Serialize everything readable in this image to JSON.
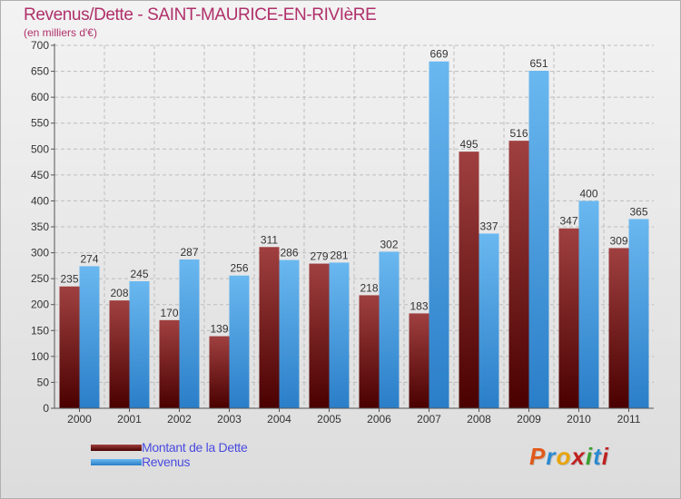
{
  "header": {
    "title": "Revenus/Dette - SAINT-MAURICE-EN-RIVIèRE",
    "subtitle": "(en milliers d'€)"
  },
  "legend": {
    "items": [
      {
        "label": "Montant de la Dette"
      },
      {
        "label": "Revenus"
      }
    ]
  },
  "logo": {
    "text": "Proxiti"
  },
  "colors": {
    "dette_top": "#a04040",
    "dette_bottom": "#4a0000",
    "revenus_top": "#6ab8f0",
    "revenus_bottom": "#2a7ec8",
    "title": "#b0306a",
    "legend_text": "#4a4ae0"
  },
  "chart_data": {
    "type": "bar",
    "title": "Revenus/Dette - SAINT-MAURICE-EN-RIVIèRE",
    "subtitle": "(en milliers d'€)",
    "xlabel": "",
    "ylabel": "",
    "ylim": [
      0,
      700
    ],
    "yticks": [
      0,
      50,
      100,
      150,
      200,
      250,
      300,
      350,
      400,
      450,
      500,
      550,
      600,
      650,
      700
    ],
    "grid": true,
    "legend_position": "bottom-left",
    "categories": [
      "2000",
      "2001",
      "2002",
      "2003",
      "2004",
      "2005",
      "2006",
      "2007",
      "2008",
      "2009",
      "2010",
      "2011"
    ],
    "series": [
      {
        "name": "Montant de la Dette",
        "values": [
          235,
          208,
          170,
          139,
          311,
          279,
          218,
          183,
          495,
          516,
          347,
          309
        ]
      },
      {
        "name": "Revenus",
        "values": [
          274,
          245,
          287,
          256,
          286,
          281,
          302,
          669,
          337,
          651,
          400,
          365
        ]
      }
    ]
  }
}
